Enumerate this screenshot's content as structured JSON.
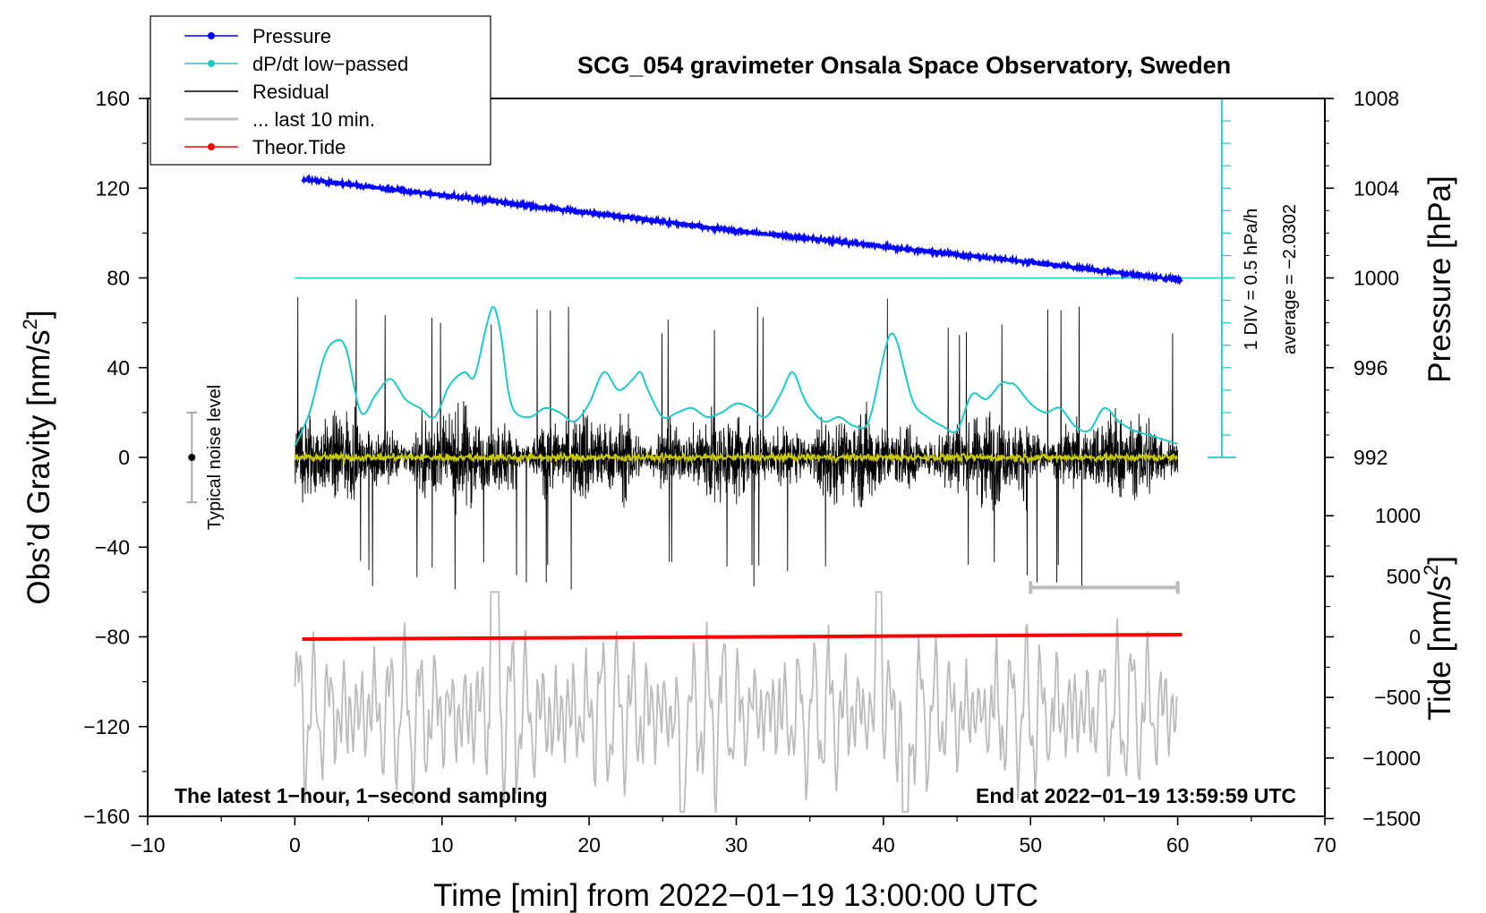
{
  "chart_data": {
    "type": "line",
    "title": "SCG_054 gravimeter Onsala Space Observatory, Sweden",
    "xlabel": "Time [min] from 2022−01−19 13:00:00 UTC",
    "ylabel_main": "Obs’d Gravity [nm/s",
    "ylabel_main_sup": "2",
    "ylabel_main_close": "]",
    "ylabel_pressure": "Pressure [hPa]",
    "ylabel_tide": "Tide [nm/s",
    "ylabel_tide_sup": "2",
    "ylabel_tide_close": "]",
    "xlim": [
      -10,
      70
    ],
    "ylim": [
      -160,
      160
    ],
    "x_ticks": [
      {
        "value": -10,
        "label": "−10"
      },
      {
        "value": 0,
        "label": "0"
      },
      {
        "value": 10,
        "label": "10"
      },
      {
        "value": 20,
        "label": "20"
      },
      {
        "value": 30,
        "label": "30"
      },
      {
        "value": 40,
        "label": "40"
      },
      {
        "value": 50,
        "label": "50"
      },
      {
        "value": 60,
        "label": "60"
      },
      {
        "value": 70,
        "label": "70"
      }
    ],
    "y_ticks": [
      {
        "value": 160,
        "label": "160"
      },
      {
        "value": 120,
        "label": "120"
      },
      {
        "value": 80,
        "label": "80"
      },
      {
        "value": 40,
        "label": "40"
      },
      {
        "value": 0,
        "label": "0"
      },
      {
        "value": -40,
        "label": "−40"
      },
      {
        "value": -80,
        "label": "−80"
      },
      {
        "value": -120,
        "label": "−120"
      },
      {
        "value": -160,
        "label": "−160"
      }
    ],
    "pressure_axis": {
      "ticks": [
        {
          "value": 1008,
          "label": "1008"
        },
        {
          "value": 1004,
          "label": "1004"
        },
        {
          "value": 1000,
          "label": "1000"
        },
        {
          "value": 996,
          "label": "996"
        },
        {
          "value": 992,
          "label": "992"
        }
      ],
      "map": {
        "hpa_ref": 1000,
        "gravity_ref": 80,
        "gravity_per_hpa": 10
      }
    },
    "tide_axis": {
      "ticks": [
        {
          "value": 1000,
          "label": "1000"
        },
        {
          "value": 500,
          "label": "500"
        },
        {
          "value": 0,
          "label": "0"
        },
        {
          "value": -500,
          "label": "−500"
        },
        {
          "value": -1000,
          "label": "−1000"
        },
        {
          "value": -1500,
          "label": "−1500"
        }
      ],
      "map": {
        "tide_ref": 0,
        "gravity_ref": -80,
        "gravity_per_unit": 0.054
      }
    },
    "legend": [
      {
        "label": "Pressure",
        "color": "#0000ff",
        "marker": true
      },
      {
        "label": "dP/dt low−passed",
        "color": "#1ec8c8",
        "marker": true
      },
      {
        "label": "Residual",
        "color": "#000000",
        "marker": false
      },
      {
        "label": "... last 10 min.",
        "color": "#bbbbbb",
        "marker": false
      },
      {
        "label": "Theor.Tide",
        "color": "#ff0000",
        "marker": true
      }
    ],
    "series": [
      {
        "name": "Pressure",
        "color": "#0000ff",
        "unit": "hPa",
        "x": [
          0.5,
          10,
          20,
          30,
          40,
          50,
          60.3
        ],
        "values": [
          1004.4,
          1003.7,
          1002.9,
          1002.1,
          1001.4,
          1000.7,
          999.9
        ]
      },
      {
        "name": "dP/dt low-passed",
        "color": "#1ec8c8",
        "unit": "nm/s2",
        "x": [
          0,
          1,
          2,
          2.8,
          3.5,
          4.5,
          5.5,
          6.5,
          7.5,
          8.5,
          9.5,
          10.5,
          11.5,
          12.2,
          13,
          13.5,
          14,
          14.5,
          15,
          16,
          17,
          18,
          19,
          20,
          21,
          22,
          23,
          23.5,
          24,
          25,
          26,
          27,
          28,
          29,
          30,
          31,
          32,
          33,
          33.8,
          34.5,
          35,
          36,
          37,
          38,
          39,
          40,
          40.5,
          41,
          42,
          43,
          44,
          45,
          46,
          47,
          48,
          48.5,
          49,
          50,
          51,
          52,
          53,
          54,
          55,
          56,
          57,
          58,
          59,
          60
        ],
        "values": [
          5,
          20,
          45,
          52,
          48,
          20,
          28,
          35,
          26,
          22,
          18,
          32,
          38,
          36,
          58,
          67,
          55,
          30,
          20,
          18,
          22,
          20,
          16,
          24,
          38,
          30,
          35,
          38,
          30,
          18,
          20,
          22,
          18,
          20,
          24,
          22,
          18,
          28,
          38,
          28,
          22,
          16,
          18,
          14,
          16,
          45,
          55,
          50,
          25,
          18,
          14,
          12,
          28,
          26,
          33,
          33,
          32,
          24,
          20,
          22,
          14,
          12,
          22,
          16,
          12,
          10,
          8,
          6
        ]
      },
      {
        "name": "Residual",
        "color": "#000000",
        "unit": "nm/s2",
        "x_range": [
          0,
          60
        ],
        "envelope": [
          -60,
          72
        ]
      },
      {
        "name": "Residual low-passed",
        "color": "#c8c800",
        "unit": "nm/s2",
        "x_range": [
          0,
          60
        ],
        "values_approx": 0
      },
      {
        "name": "... last 10 min.",
        "color": "#bbbbbb",
        "unit": "nm/s2",
        "x_range": [
          0,
          60
        ],
        "envelope": [
          -160,
          -58
        ]
      },
      {
        "name": "Theor.Tide",
        "color": "#ff0000",
        "unit": "nm/s2",
        "x": [
          0.5,
          60.3
        ],
        "values": [
          -81,
          -79
        ]
      }
    ],
    "reference_line": {
      "value": 80,
      "color": "#1ec8c8",
      "x_range": [
        0,
        63
      ]
    },
    "noise_bar": {
      "x": -7,
      "center": 0,
      "low": -20,
      "high": 20,
      "label": "Typical noise level"
    },
    "last10_bar": {
      "x_start": 50,
      "x_end": 60,
      "y": -58
    },
    "scale_bar": {
      "x": 63,
      "y_bottom": 0,
      "y_top": 160,
      "label_div": "1 DIV = 0.5 hPa/h",
      "label_avg": "average = −2.0302"
    },
    "note_left": "The latest 1−hour, 1−second sampling",
    "note_right": "End at 2022−01−19 13:59:59 UTC",
    "grid": false,
    "legend_position": "top-left"
  }
}
